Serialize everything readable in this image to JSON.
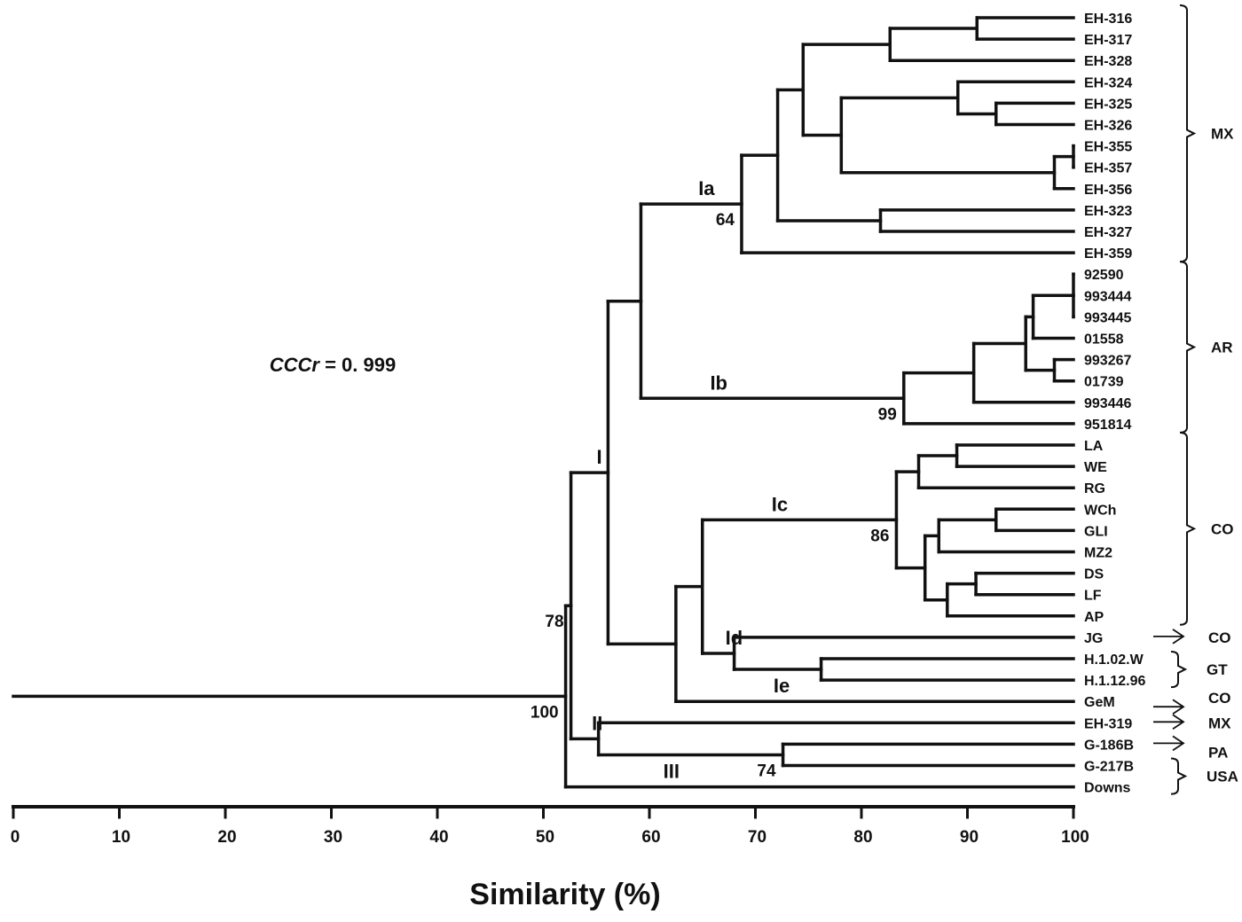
{
  "chart_data": {
    "type": "dendrogram",
    "xlabel": "Similarity (%)",
    "xlim": [
      0,
      100
    ],
    "xticks": [
      "0",
      "10",
      "20",
      "30",
      "40",
      "50",
      "60",
      "70",
      "80",
      "90",
      "100"
    ],
    "annotation": {
      "italic": "CCCr",
      "rest": " = 0. 999"
    },
    "tree": {
      "sim": 52.1,
      "support": "100",
      "children": [
        {
          "sim": 52.6,
          "support": "78",
          "children": [
            {
              "sim": 56.1,
              "cluster": "I",
              "children": [
                {
                  "sim": 59.2,
                  "children": [
                    {
                      "sim": 68.7,
                      "cluster": "Ia",
                      "support": "64",
                      "children": [
                        {
                          "sim": 72.1,
                          "children": [
                            {
                              "sim": 74.5,
                              "children": [
                                {
                                  "sim": 82.7,
                                  "children": [
                                    {
                                      "sim": 90.9,
                                      "children": [
                                        {
                                          "label": "EH-316"
                                        },
                                        {
                                          "label": "EH-317"
                                        }
                                      ]
                                    },
                                    {
                                      "label": "EH-328"
                                    }
                                  ]
                                },
                                {
                                  "sim": 78.1,
                                  "children": [
                                    {
                                      "sim": 89.1,
                                      "children": [
                                        {
                                          "label": "EH-324"
                                        },
                                        {
                                          "sim": 92.7,
                                          "children": [
                                            {
                                              "label": "EH-325"
                                            },
                                            {
                                              "label": "EH-326"
                                            }
                                          ]
                                        }
                                      ]
                                    },
                                    {
                                      "sim": 98.2,
                                      "children": [
                                        {
                                          "sim": 100,
                                          "children": [
                                            {
                                              "label": "EH-355"
                                            },
                                            {
                                              "label": "EH-357"
                                            }
                                          ]
                                        },
                                        {
                                          "label": "EH-356"
                                        }
                                      ]
                                    }
                                  ]
                                }
                              ]
                            },
                            {
                              "sim": 81.8,
                              "children": [
                                {
                                  "label": "EH-323"
                                },
                                {
                                  "label": "EH-327"
                                }
                              ]
                            }
                          ]
                        },
                        {
                          "label": "EH-359"
                        }
                      ]
                    },
                    {
                      "sim": 84.0,
                      "cluster": "Ib",
                      "support": "99",
                      "children": [
                        {
                          "sim": 90.6,
                          "children": [
                            {
                              "sim": 95.5,
                              "children": [
                                {
                                  "sim": 96.2,
                                  "children": [
                                    {
                                      "sim": 100,
                                      "children": [
                                        {
                                          "label": "92590"
                                        },
                                        {
                                          "label": "993444"
                                        },
                                        {
                                          "label": "993445"
                                        }
                                      ]
                                    },
                                    {
                                      "label": "01558"
                                    }
                                  ]
                                },
                                {
                                  "sim": 98.2,
                                  "children": [
                                    {
                                      "label": "993267"
                                    },
                                    {
                                      "label": "01739"
                                    }
                                  ]
                                }
                              ]
                            },
                            {
                              "label": "993446"
                            }
                          ]
                        },
                        {
                          "label": "951814"
                        }
                      ]
                    }
                  ]
                },
                {
                  "sim": 62.5,
                  "children": [
                    {
                      "sim": 65.0,
                      "children": [
                        {
                          "sim": 83.3,
                          "cluster": "Ic",
                          "support": "86",
                          "children": [
                            {
                              "sim": 85.4,
                              "children": [
                                {
                                  "sim": 89.0,
                                  "children": [
                                    {
                                      "label": "LA"
                                    },
                                    {
                                      "label": "WE"
                                    }
                                  ]
                                },
                                {
                                  "label": "RG"
                                }
                              ]
                            },
                            {
                              "sim": 86.0,
                              "children": [
                                {
                                  "sim": 87.3,
                                  "children": [
                                    {
                                      "sim": 92.7,
                                      "children": [
                                        {
                                          "label": "WCh"
                                        },
                                        {
                                          "label": "GLI"
                                        }
                                      ]
                                    },
                                    {
                                      "label": "MZ2"
                                    }
                                  ]
                                },
                                {
                                  "sim": 88.1,
                                  "children": [
                                    {
                                      "sim": 90.8,
                                      "children": [
                                        {
                                          "label": "DS"
                                        },
                                        {
                                          "label": "LF"
                                        }
                                      ]
                                    },
                                    {
                                      "label": "AP"
                                    }
                                  ]
                                }
                              ]
                            }
                          ]
                        },
                        {
                          "sim": 68.0,
                          "cluster": "Id",
                          "children": [
                            {
                              "label": "JG"
                            },
                            {
                              "sim": 76.2,
                              "children": [
                                {
                                  "label": "H.1.02.W"
                                },
                                {
                                  "label": "H.1.12.96"
                                }
                              ]
                            }
                          ]
                        }
                      ]
                    },
                    {
                      "label": "GeM",
                      "cluster": "Ie"
                    }
                  ]
                }
              ]
            },
            {
              "sim": 55.2,
              "cluster": "II",
              "children": [
                {
                  "label": "EH-319"
                },
                {
                  "sim": 72.6,
                  "support": "74",
                  "children": [
                    {
                      "label": "G-186B"
                    },
                    {
                      "label": "G-217B"
                    }
                  ]
                }
              ]
            }
          ]
        },
        {
          "label": "Downs",
          "cluster": "III"
        }
      ]
    },
    "groups": [
      {
        "type": "bracket",
        "from": "EH-316",
        "to": "EH-359",
        "label": "MX"
      },
      {
        "type": "bracket",
        "from": "92590",
        "to": "951814",
        "label": "AR"
      },
      {
        "type": "bracket",
        "from": "LA",
        "to": "AP",
        "label": "CO"
      },
      {
        "type": "arrow",
        "from": "JG",
        "to": "JG",
        "label": "CO"
      },
      {
        "type": "bracket",
        "from": "H.1.02.W",
        "to": "H.1.12.96",
        "label": "GT"
      },
      {
        "type": "arrow",
        "from": "GeM",
        "to": "GeM",
        "label": "CO"
      },
      {
        "type": "arrow",
        "from": "EH-319",
        "to": "EH-319",
        "label": "MX"
      },
      {
        "type": "arrow",
        "from": "G-186B",
        "to": "G-186B",
        "label": "PA"
      },
      {
        "type": "bracket",
        "from": "G-217B",
        "to": "Downs",
        "label": "USA"
      }
    ]
  }
}
